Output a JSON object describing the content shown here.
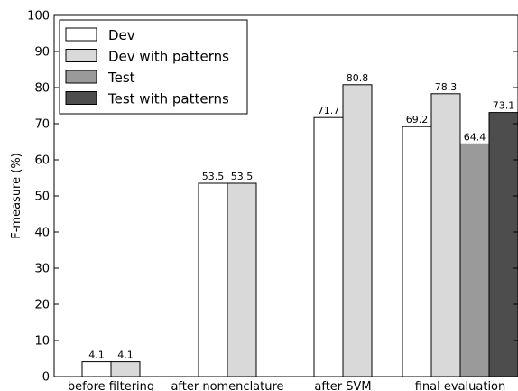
{
  "chart_data": {
    "type": "bar",
    "categories": [
      "before filtering",
      "after nomenclature",
      "after SVM",
      "final evaluation"
    ],
    "series": [
      {
        "name": "Dev",
        "color": "#ffffff",
        "values": [
          4.1,
          53.5,
          71.7,
          69.2
        ]
      },
      {
        "name": "Dev with patterns",
        "color": "#d9d9d9",
        "values": [
          4.1,
          53.5,
          80.8,
          78.3
        ]
      },
      {
        "name": "Test",
        "color": "#9a9a9a",
        "values": [
          null,
          null,
          null,
          64.4
        ]
      },
      {
        "name": "Test with patterns",
        "color": "#4d4d4d",
        "values": [
          null,
          null,
          null,
          73.1
        ]
      }
    ],
    "ylabel": "F-measure (%)",
    "ylim": [
      0,
      100
    ],
    "yticks": [
      0,
      10,
      20,
      30,
      40,
      50,
      60,
      70,
      80,
      90,
      100
    ],
    "grid": false,
    "legend_position": "top-left"
  }
}
